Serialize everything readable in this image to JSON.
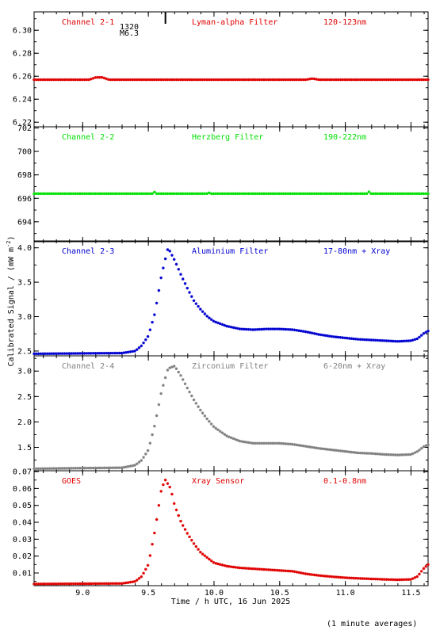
{
  "chart_data": {
    "type": "scatter",
    "xlabel": "Time / h UTC, 16 Jun 2025",
    "ylabel": "Calibrated Signal / (mW m",
    "ylabel_sup": "-2",
    "ylabel_close": ")",
    "footnote": "(1 minute averages)",
    "xlim": [
      8.63,
      11.63
    ],
    "xticks": [
      9.0,
      9.5,
      10.0,
      10.5,
      11.0,
      11.5
    ],
    "xtick_labels": [
      "9.0",
      "9.5",
      "10.0",
      "10.5",
      "11.0",
      "11.5"
    ],
    "flare_marker": {
      "x": 9.63,
      "labels": [
        "1320",
        "M6.3"
      ]
    },
    "panels": [
      {
        "channel": "Channel 2-1",
        "filter": "Lyman-alpha Filter",
        "band": "120-123nm",
        "color": "#e00000",
        "ylim": [
          6.216,
          6.316
        ],
        "yticks": [
          6.22,
          6.24,
          6.26,
          6.28,
          6.3
        ],
        "ytick_labels": [
          "6.22",
          "6.24",
          "6.26",
          "6.28",
          "6.30"
        ],
        "profile": [
          [
            8.63,
            6.257
          ],
          [
            9.05,
            6.257
          ],
          [
            9.1,
            6.259
          ],
          [
            9.15,
            6.259
          ],
          [
            9.2,
            6.257
          ],
          [
            10.7,
            6.257
          ],
          [
            10.75,
            6.258
          ],
          [
            10.8,
            6.257
          ],
          [
            11.63,
            6.257
          ]
        ]
      },
      {
        "channel": "Channel 2-2",
        "filter": "Herzberg Filter",
        "band": "190-222nm",
        "color": "#00e000",
        "ylim": [
          692.3,
          702.1
        ],
        "yticks": [
          694,
          696,
          698,
          700,
          702
        ],
        "ytick_labels": [
          "694",
          "696",
          "698",
          "700",
          "702"
        ],
        "profile": [
          [
            8.63,
            696.4
          ],
          [
            9.54,
            696.4
          ],
          [
            9.55,
            696.6
          ],
          [
            9.56,
            696.4
          ],
          [
            9.95,
            696.4
          ],
          [
            9.96,
            696.5
          ],
          [
            9.97,
            696.4
          ],
          [
            11.17,
            696.4
          ],
          [
            11.18,
            696.55
          ],
          [
            11.19,
            696.4
          ],
          [
            11.63,
            696.4
          ]
        ]
      },
      {
        "channel": "Channel 2-3",
        "filter": "Aluminium Filter",
        "band": "17-80nm + Xray",
        "color": "#0000d0",
        "ylim": [
          2.43,
          4.1
        ],
        "yticks": [
          2.5,
          3.0,
          3.5,
          4.0
        ],
        "ytick_labels": [
          "2.5",
          "3.0",
          "3.5",
          "4.0"
        ],
        "profile": [
          [
            8.63,
            2.46
          ],
          [
            9.3,
            2.47
          ],
          [
            9.4,
            2.5
          ],
          [
            9.45,
            2.58
          ],
          [
            9.5,
            2.72
          ],
          [
            9.55,
            3.05
          ],
          [
            9.6,
            3.6
          ],
          [
            9.65,
            4.0
          ],
          [
            9.7,
            3.82
          ],
          [
            9.75,
            3.6
          ],
          [
            9.8,
            3.4
          ],
          [
            9.85,
            3.22
          ],
          [
            9.9,
            3.1
          ],
          [
            9.95,
            3.0
          ],
          [
            10.0,
            2.93
          ],
          [
            10.1,
            2.86
          ],
          [
            10.2,
            2.82
          ],
          [
            10.3,
            2.81
          ],
          [
            10.4,
            2.82
          ],
          [
            10.5,
            2.82
          ],
          [
            10.6,
            2.81
          ],
          [
            10.7,
            2.78
          ],
          [
            10.8,
            2.74
          ],
          [
            10.9,
            2.71
          ],
          [
            11.0,
            2.69
          ],
          [
            11.1,
            2.67
          ],
          [
            11.2,
            2.66
          ],
          [
            11.3,
            2.65
          ],
          [
            11.4,
            2.64
          ],
          [
            11.5,
            2.65
          ],
          [
            11.55,
            2.68
          ],
          [
            11.6,
            2.76
          ],
          [
            11.63,
            2.79
          ]
        ]
      },
      {
        "channel": "Channel 2-4",
        "filter": "Zirconium Filter",
        "band": "6-20nm + Xray",
        "color": "#808080",
        "ylim": [
          1.04,
          3.3
        ],
        "yticks": [
          1.5,
          2.0,
          2.5,
          3.0
        ],
        "ytick_labels": [
          "1.5",
          "2.0",
          "2.5",
          "3.0"
        ],
        "profile": [
          [
            8.63,
            1.08
          ],
          [
            9.3,
            1.1
          ],
          [
            9.4,
            1.15
          ],
          [
            9.45,
            1.25
          ],
          [
            9.5,
            1.45
          ],
          [
            9.55,
            1.95
          ],
          [
            9.6,
            2.6
          ],
          [
            9.65,
            3.05
          ],
          [
            9.7,
            3.1
          ],
          [
            9.75,
            2.9
          ],
          [
            9.8,
            2.65
          ],
          [
            9.85,
            2.42
          ],
          [
            9.9,
            2.22
          ],
          [
            9.95,
            2.05
          ],
          [
            10.0,
            1.9
          ],
          [
            10.1,
            1.72
          ],
          [
            10.2,
            1.62
          ],
          [
            10.3,
            1.58
          ],
          [
            10.4,
            1.58
          ],
          [
            10.5,
            1.58
          ],
          [
            10.6,
            1.56
          ],
          [
            10.7,
            1.52
          ],
          [
            10.8,
            1.48
          ],
          [
            10.9,
            1.45
          ],
          [
            11.0,
            1.42
          ],
          [
            11.1,
            1.39
          ],
          [
            11.2,
            1.38
          ],
          [
            11.3,
            1.36
          ],
          [
            11.4,
            1.35
          ],
          [
            11.5,
            1.36
          ],
          [
            11.55,
            1.42
          ],
          [
            11.6,
            1.52
          ],
          [
            11.63,
            1.55
          ]
        ]
      },
      {
        "channel": "GOES",
        "filter": "Xray Sensor",
        "band": "0.1-0.8nm",
        "color": "#e00000",
        "ylim": [
          0.0025,
          0.0705
        ],
        "yticks": [
          0.01,
          0.02,
          0.03,
          0.04,
          0.05,
          0.06,
          0.07
        ],
        "ytick_labels": [
          "0.01",
          "0.02",
          "0.03",
          "0.04",
          "0.05",
          "0.06",
          "0.07"
        ],
        "profile": [
          [
            8.63,
            0.0035
          ],
          [
            9.3,
            0.0038
          ],
          [
            9.4,
            0.005
          ],
          [
            9.45,
            0.008
          ],
          [
            9.5,
            0.015
          ],
          [
            9.55,
            0.035
          ],
          [
            9.6,
            0.06
          ],
          [
            9.63,
            0.065
          ],
          [
            9.67,
            0.06
          ],
          [
            9.7,
            0.05
          ],
          [
            9.75,
            0.04
          ],
          [
            9.8,
            0.033
          ],
          [
            9.85,
            0.027
          ],
          [
            9.9,
            0.022
          ],
          [
            9.95,
            0.019
          ],
          [
            10.0,
            0.016
          ],
          [
            10.1,
            0.014
          ],
          [
            10.2,
            0.013
          ],
          [
            10.3,
            0.0125
          ],
          [
            10.4,
            0.012
          ],
          [
            10.5,
            0.0115
          ],
          [
            10.6,
            0.011
          ],
          [
            10.7,
            0.0095
          ],
          [
            10.8,
            0.0085
          ],
          [
            10.9,
            0.0078
          ],
          [
            11.0,
            0.0072
          ],
          [
            11.1,
            0.0068
          ],
          [
            11.2,
            0.0065
          ],
          [
            11.3,
            0.0062
          ],
          [
            11.4,
            0.006
          ],
          [
            11.5,
            0.0062
          ],
          [
            11.55,
            0.008
          ],
          [
            11.6,
            0.013
          ],
          [
            11.63,
            0.015
          ]
        ]
      }
    ]
  }
}
